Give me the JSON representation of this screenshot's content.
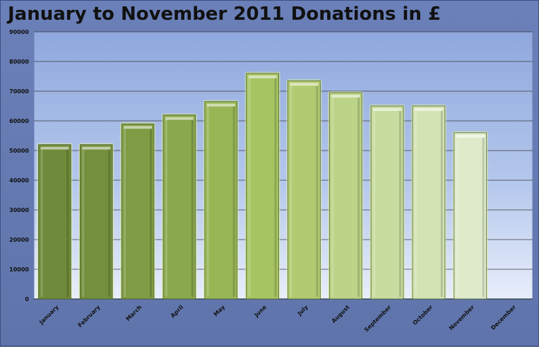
{
  "chart_data": {
    "type": "bar",
    "title": "January to November 2011 Donations in £",
    "xlabel": "",
    "ylabel": "",
    "ylim": [
      0,
      90000
    ],
    "yticks": [
      0,
      10000,
      20000,
      30000,
      40000,
      50000,
      60000,
      70000,
      80000,
      90000
    ],
    "categories": [
      "January",
      "February",
      "March",
      "April",
      "May",
      "June",
      "July",
      "August",
      "September",
      "October",
      "November",
      "December"
    ],
    "values": [
      52000,
      52000,
      59000,
      62000,
      66500,
      76000,
      73500,
      69500,
      65000,
      65000,
      56000,
      null
    ],
    "bar_colors": [
      "#6f8a3a",
      "#748f3e",
      "#7f9c45",
      "#8aa84e",
      "#98b656",
      "#a6c462",
      "#b1cb72",
      "#bcd487",
      "#c8dca0",
      "#d3e3b4",
      "#dfeacb",
      "#e8f0da"
    ],
    "grid": true,
    "legend": "none"
  }
}
